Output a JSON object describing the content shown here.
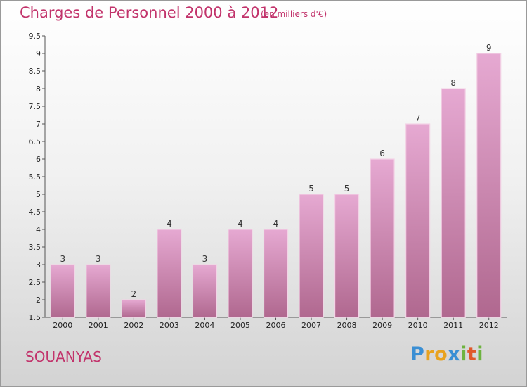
{
  "chart_data": {
    "type": "bar",
    "title": "Charges de Personnel 2000 à 2012",
    "subtitle": "(en milliers d'€)",
    "categories": [
      "2000",
      "2001",
      "2002",
      "2003",
      "2004",
      "2005",
      "2006",
      "2007",
      "2008",
      "2009",
      "2010",
      "2011",
      "2012"
    ],
    "values": [
      3,
      3,
      2,
      4,
      3,
      4,
      4,
      5,
      5,
      6,
      7,
      8,
      9
    ],
    "ylim": [
      1.5,
      9.5
    ],
    "yticks": [
      "1.5",
      "2",
      "2.5",
      "3",
      "3.5",
      "4",
      "4.5",
      "5",
      "5.5",
      "6",
      "6.5",
      "7",
      "7.5",
      "8",
      "8.5",
      "9",
      "9.5"
    ],
    "grid": false,
    "xlabel": "",
    "ylabel": ""
  },
  "commune": "SOUANYAS",
  "logo": {
    "letters": [
      "P",
      "r",
      "o",
      "x",
      "i",
      "t",
      "i"
    ],
    "colors": [
      "#3b8fd4",
      "#e8a21e",
      "#e8a21e",
      "#3b8fd4",
      "#6db33f",
      "#e0582a",
      "#6db33f"
    ]
  },
  "colors": {
    "bar_top": "#e6a9d2",
    "bar_bottom": "#b0688f",
    "bar_edge": "#f3d3e6",
    "title": "#c2336b"
  }
}
